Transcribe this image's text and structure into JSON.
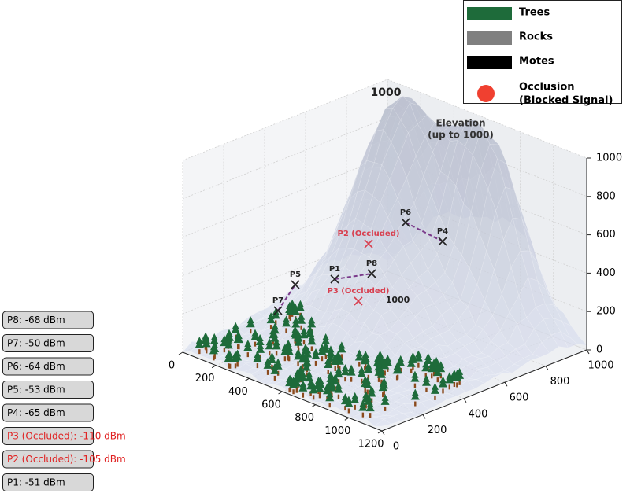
{
  "chart_data": {
    "type": "surface3d",
    "xlim": [
      0,
      1200
    ],
    "ylim": [
      0,
      1000
    ],
    "zlim": [
      0,
      1000
    ],
    "xticks": [
      0,
      200,
      400,
      600,
      800,
      1000,
      1200
    ],
    "yticks": [
      0,
      200,
      400,
      600,
      800,
      1000
    ],
    "zticks": [
      0,
      200,
      400,
      600,
      800,
      1000
    ],
    "grid": true,
    "annotations": [
      "1000",
      "Elevation",
      "(up to 1000)",
      "1000"
    ],
    "legend": [
      {
        "name": "Trees",
        "color": "#1e6b3a",
        "shape": "rect"
      },
      {
        "name": "Rocks",
        "color": "#808080",
        "shape": "rect"
      },
      {
        "name": "Motes",
        "color": "#000000",
        "shape": "rect"
      },
      {
        "name": "Occlusion",
        "detail": "(Blocked Signal)",
        "color": "#f04030",
        "shape": "circle"
      }
    ],
    "motes": [
      {
        "label": "P1",
        "color": "#222222"
      },
      {
        "label": "P2 (Occluded)",
        "color": "#d84050"
      },
      {
        "label": "P3 (Occluded)",
        "color": "#d84050"
      },
      {
        "label": "P4",
        "color": "#222222"
      },
      {
        "label": "P5",
        "color": "#222222"
      },
      {
        "label": "P6",
        "color": "#222222"
      },
      {
        "label": "P7",
        "color": "#222222"
      },
      {
        "label": "P8",
        "color": "#222222"
      }
    ],
    "readings": [
      {
        "text": "P8: -68 dBm",
        "color": "#000000"
      },
      {
        "text": "P7: -50 dBm",
        "color": "#000000"
      },
      {
        "text": "P6: -64 dBm",
        "color": "#000000"
      },
      {
        "text": "P5: -53 dBm",
        "color": "#000000"
      },
      {
        "text": "P4: -65 dBm",
        "color": "#000000"
      },
      {
        "text": "P3 (Occluded): -110 dBm",
        "color": "#e02020"
      },
      {
        "text": "P2 (Occluded): -105 dBm",
        "color": "#e02020"
      },
      {
        "text": "P1: -51 dBm",
        "color": "#000000"
      }
    ]
  }
}
